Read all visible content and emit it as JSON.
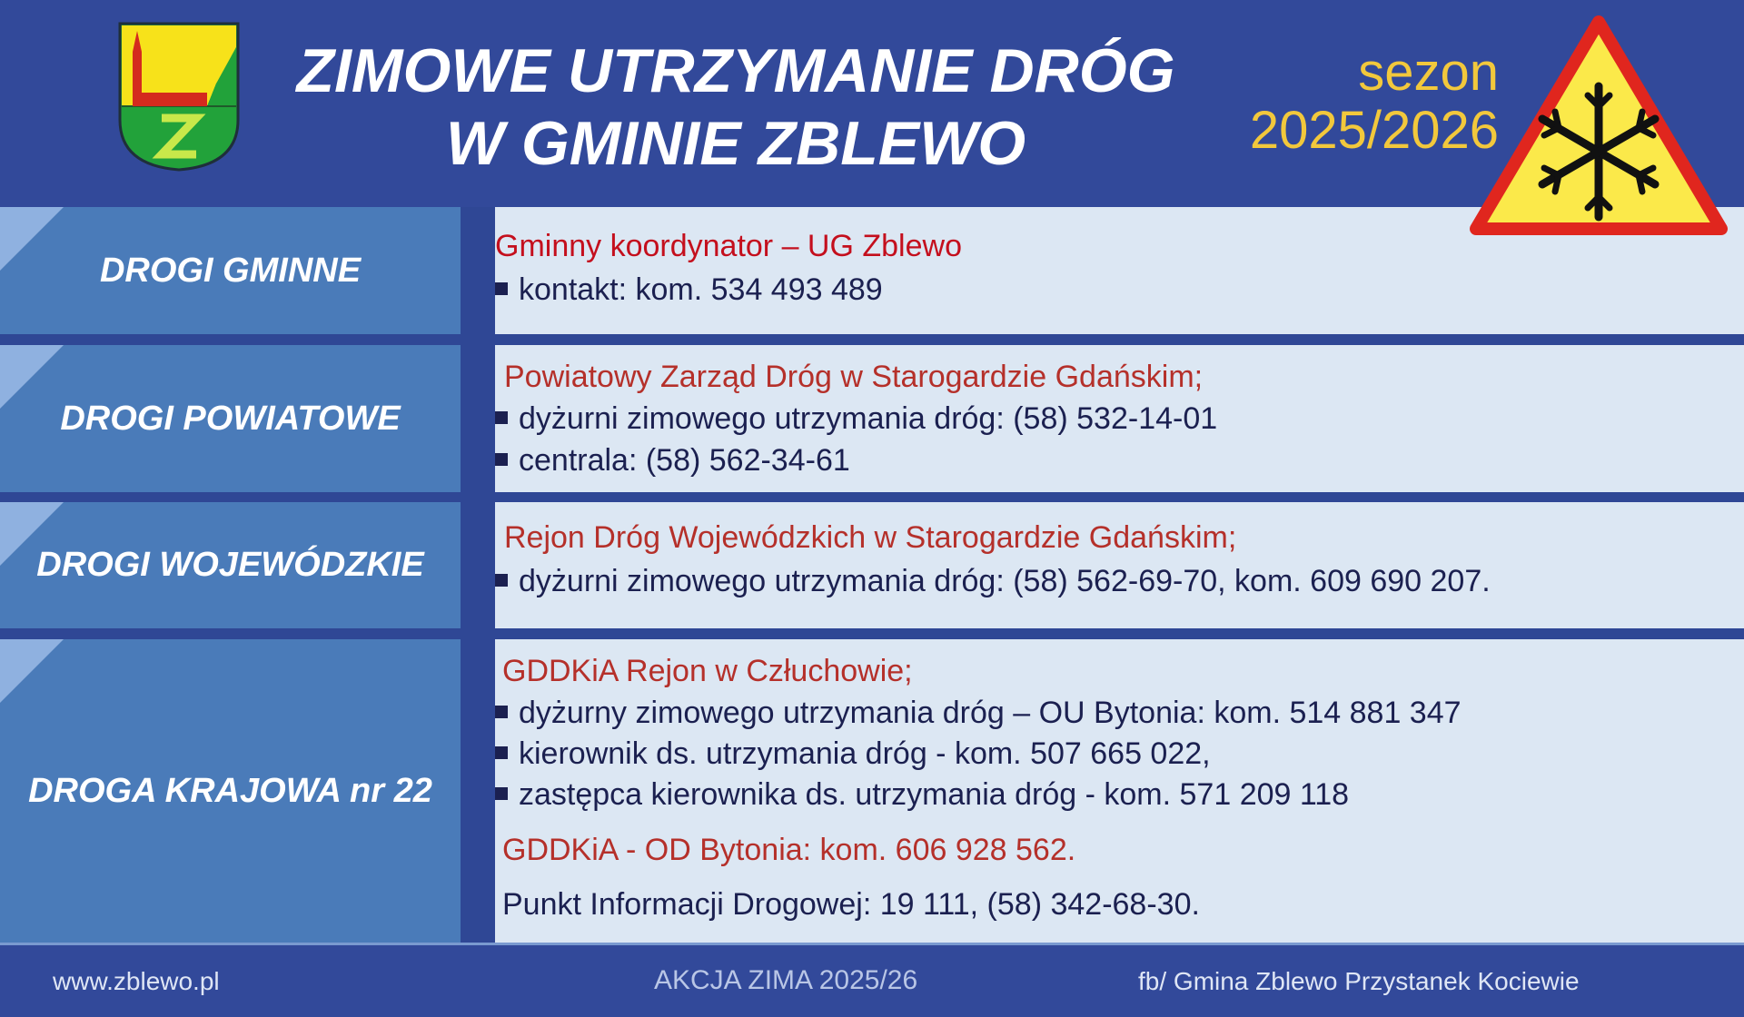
{
  "header": {
    "title_line1": "ZIMOWE UTRZYMANIE DRÓG",
    "title_line2": "W GMINIE ZBLEWO",
    "season_label": "sezon",
    "season_years": "2025/2026",
    "crest": "coat-of-arms-zblewo",
    "sign_icon": "snow-warning-sign"
  },
  "colors": {
    "header": "#32499a",
    "label_column": "#4a7bb9",
    "content_bg": "#dce7f3",
    "red": "#b5302a",
    "text": "#1b2050",
    "season": "#f2c83c"
  },
  "rows": [
    {
      "label": "DROGI GMINNE",
      "heading": "Gminny koordynator  – UG Zblewo",
      "items": [
        "kontakt: kom. 534 493 489"
      ]
    },
    {
      "label": "DROGI POWIATOWE",
      "heading": "Powiatowy Zarząd Dróg w Starogardzie Gdańskim;",
      "items": [
        "dyżurni zimowego utrzymania dróg: (58) 532-14-01",
        "centrala: (58) 562-34-61"
      ]
    },
    {
      "label": "DROGI WOJEWÓDZKIE",
      "heading": "Rejon Dróg Wojewódzkich w Starogardzie Gdańskim;",
      "items": [
        "dyżurni zimowego utrzymania dróg: (58) 562-69-70, kom. 609 690 207."
      ]
    },
    {
      "label": "DROGA KRAJOWA nr 22",
      "heading": "GDDKiA Rejon w Człuchowie;",
      "items": [
        "dyżurny zimowego utrzymania dróg – OU Bytonia: kom. 514 881 347",
        "kierownik ds. utrzymania dróg - kom. 507 665 022,",
        "zastępca kierownika ds. utrzymania dróg - kom. 571 209 118"
      ],
      "heading2": "GDDKiA - OD Bytonia: kom. 606 928 562.",
      "note": "Punkt Informacji Drogowej: 19 111, (58) 342-68-30."
    }
  ],
  "footer": {
    "website": "www.zblewo.pl",
    "campaign": "AKCJA ZIMA 2025/26",
    "facebook": "fb/ Gmina Zblewo Przystanek Kociewie"
  }
}
